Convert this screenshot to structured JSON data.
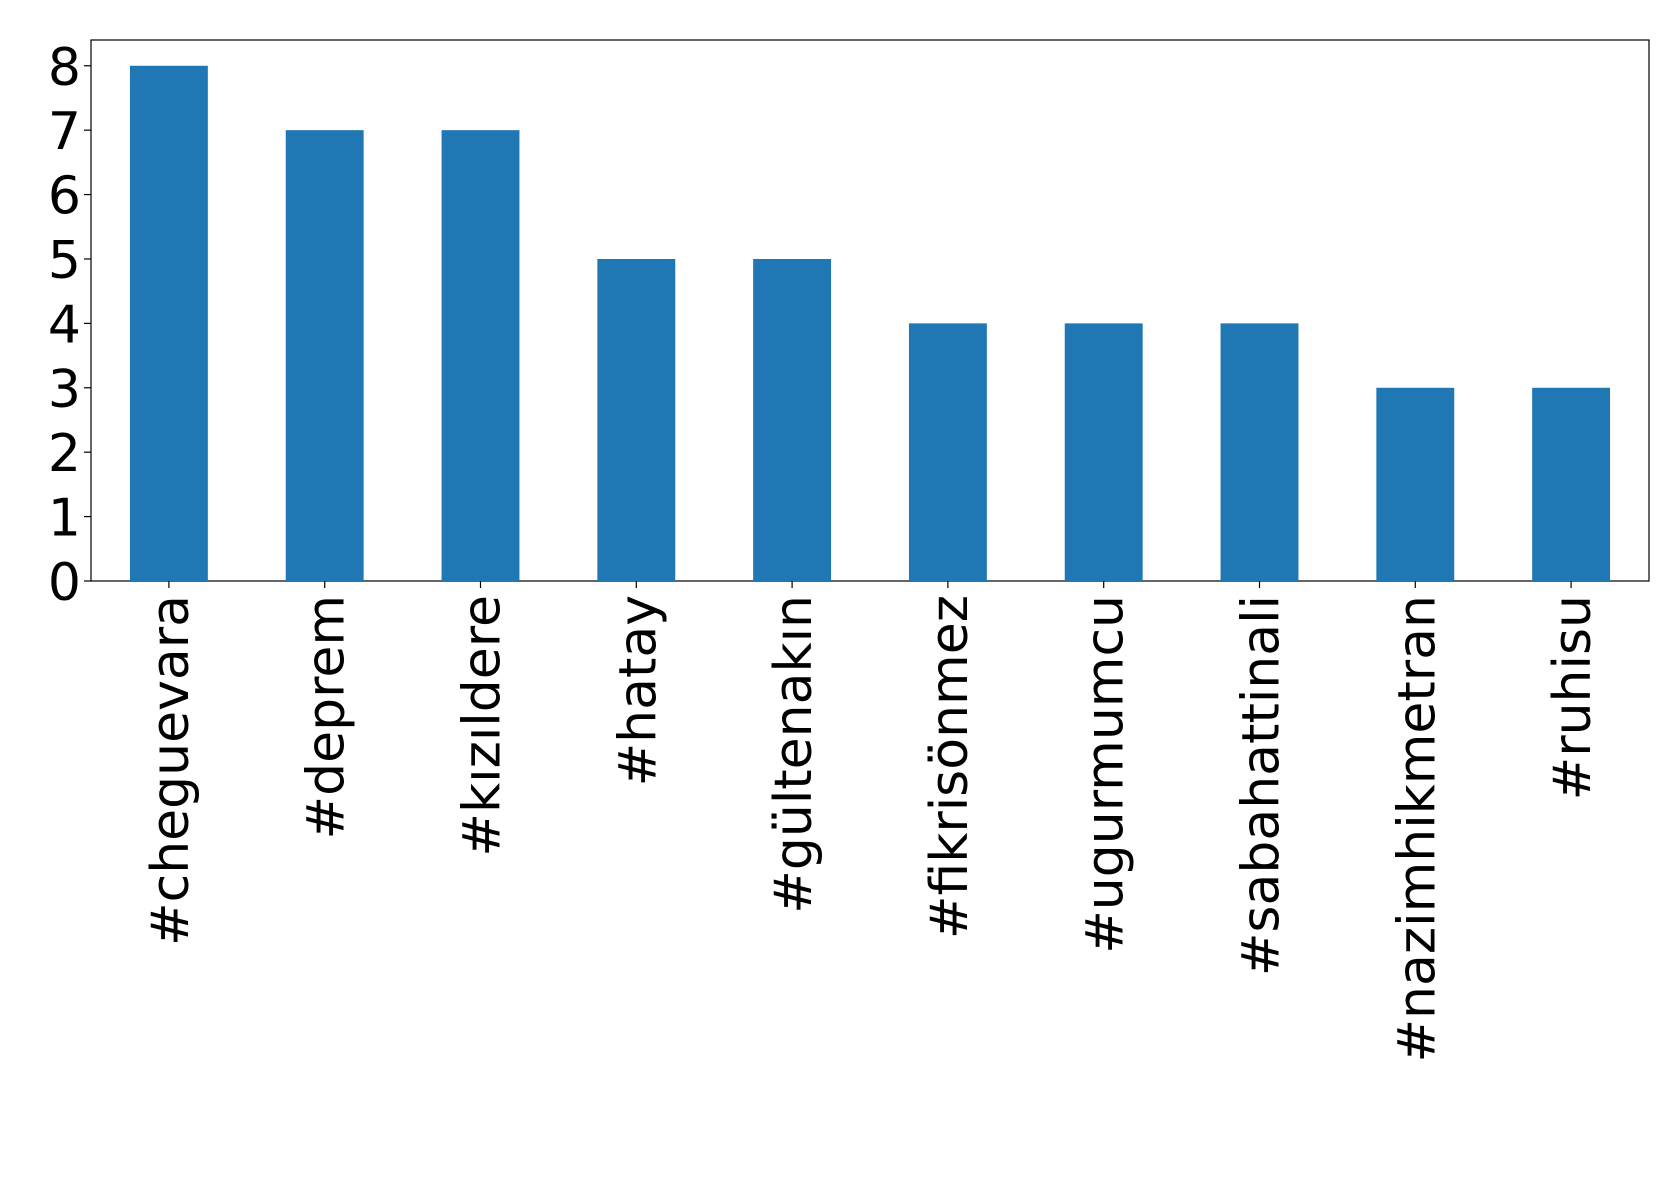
{
  "chart_data": {
    "type": "bar",
    "categories": [
      "#cheguevara",
      "#deprem",
      "#kızıldere",
      "#hatay",
      "#gültenakın",
      "#fikrisönmez",
      "#ugurmumcu",
      "#sabahattinali",
      "#nazimhikmetran",
      "#ruhisu"
    ],
    "values": [
      8,
      7,
      7,
      5,
      5,
      4,
      4,
      4,
      3,
      3
    ],
    "color": "#1f77b4",
    "ylim": [
      0,
      8.4
    ],
    "yticks": [
      0,
      1,
      2,
      3,
      4,
      5,
      6,
      7,
      8
    ],
    "grid": false
  }
}
